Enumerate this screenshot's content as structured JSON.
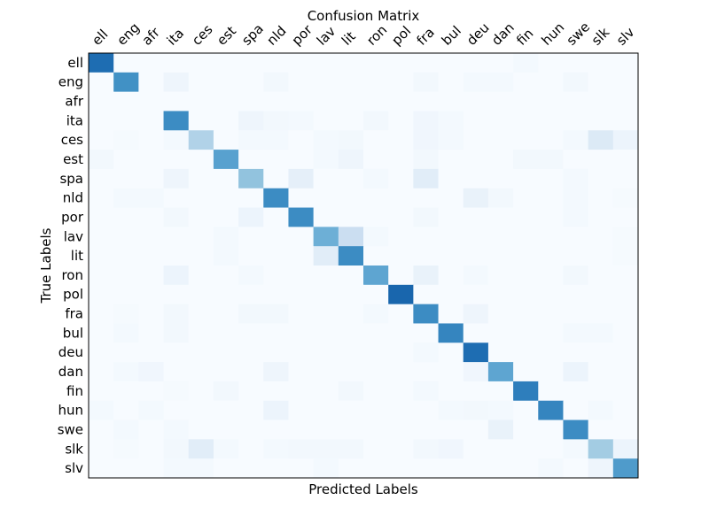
{
  "chart_data": {
    "type": "heatmap",
    "title": "Confusion Matrix",
    "xlabel": "Predicted Labels",
    "ylabel": "True Labels",
    "x_categories": [
      "ell",
      "eng",
      "afr",
      "ita",
      "ces",
      "est",
      "spa",
      "nld",
      "por",
      "lav",
      "lit",
      "ron",
      "pol",
      "fra",
      "bul",
      "deu",
      "dan",
      "fin",
      "hun",
      "swe",
      "slk",
      "slv"
    ],
    "y_categories": [
      "ell",
      "eng",
      "afr",
      "ita",
      "ces",
      "est",
      "spa",
      "nld",
      "por",
      "lav",
      "lit",
      "ron",
      "pol",
      "fra",
      "bul",
      "deu",
      "dan",
      "fin",
      "hun",
      "swe",
      "slk",
      "slv"
    ],
    "colormap": "Blues",
    "value_range": [
      0,
      1
    ],
    "x_ticks_position": "top",
    "grid": false,
    "values": [
      [
        0.85,
        0,
        0,
        0,
        0,
        0,
        0,
        0,
        0,
        0,
        0,
        0,
        0,
        0,
        0,
        0,
        0,
        0.02,
        0,
        0,
        0,
        0
      ],
      [
        0,
        0.7,
        0,
        0.05,
        0,
        0,
        0,
        0.03,
        0,
        0,
        0,
        0,
        0,
        0.03,
        0,
        0.02,
        0.02,
        0,
        0,
        0.03,
        0,
        0
      ],
      [
        0,
        0,
        0,
        0,
        0,
        0,
        0,
        0,
        0,
        0,
        0,
        0,
        0,
        0,
        0,
        0,
        0,
        0,
        0,
        0,
        0,
        0
      ],
      [
        0,
        0,
        0,
        0.72,
        0,
        0,
        0.05,
        0.03,
        0.02,
        0,
        0,
        0.03,
        0,
        0.04,
        0.02,
        0,
        0,
        0,
        0,
        0,
        0,
        0
      ],
      [
        0,
        0.01,
        0,
        0.02,
        0.35,
        0,
        0.02,
        0.02,
        0,
        0.02,
        0.03,
        0,
        0,
        0.04,
        0.02,
        0,
        0,
        0,
        0,
        0.02,
        0.15,
        0.06
      ],
      [
        0.03,
        0,
        0,
        0,
        0,
        0.62,
        0,
        0,
        0,
        0.02,
        0.05,
        0,
        0,
        0.03,
        0,
        0,
        0,
        0.03,
        0.03,
        0,
        0,
        0
      ],
      [
        0,
        0,
        0,
        0.05,
        0,
        0,
        0.45,
        0,
        0.1,
        0,
        0,
        0.02,
        0,
        0.12,
        0,
        0,
        0,
        0,
        0,
        0.02,
        0,
        0
      ],
      [
        0,
        0.02,
        0.02,
        0,
        0,
        0,
        0,
        0.72,
        0,
        0,
        0,
        0,
        0,
        0,
        0,
        0.08,
        0.03,
        0,
        0,
        0.02,
        0,
        0.01
      ],
      [
        0,
        0,
        0,
        0.03,
        0,
        0,
        0.06,
        0,
        0.72,
        0,
        0,
        0,
        0,
        0.03,
        0,
        0,
        0,
        0,
        0,
        0.02,
        0,
        0
      ],
      [
        0,
        0,
        0,
        0,
        0,
        0.02,
        0,
        0,
        0,
        0.55,
        0.25,
        0.02,
        0,
        0,
        0,
        0,
        0,
        0,
        0,
        0,
        0,
        0.01
      ],
      [
        0,
        0,
        0,
        0,
        0,
        0.02,
        0,
        0,
        0,
        0.12,
        0.72,
        0,
        0,
        0,
        0,
        0,
        0,
        0,
        0,
        0,
        0,
        0.01
      ],
      [
        0,
        0,
        0,
        0.06,
        0,
        0,
        0.02,
        0,
        0,
        0,
        0,
        0.6,
        0,
        0.08,
        0,
        0.02,
        0,
        0,
        0,
        0.03,
        0,
        0
      ],
      [
        0,
        0,
        0,
        0,
        0,
        0,
        0,
        0,
        0,
        0,
        0,
        0,
        0.88,
        0,
        0,
        0,
        0,
        0,
        0,
        0,
        0,
        0
      ],
      [
        0,
        0.01,
        0,
        0.03,
        0,
        0,
        0.03,
        0.03,
        0,
        0,
        0,
        0.02,
        0,
        0.72,
        0,
        0.05,
        0,
        0,
        0,
        0,
        0,
        0
      ],
      [
        0,
        0.02,
        0,
        0.03,
        0,
        0,
        0,
        0,
        0,
        0,
        0,
        0,
        0,
        0,
        0.75,
        0,
        0,
        0,
        0,
        0.02,
        0.02,
        0
      ],
      [
        0,
        0,
        0,
        0,
        0,
        0,
        0,
        0,
        0,
        0,
        0,
        0,
        0,
        0.02,
        0,
        0.85,
        0,
        0,
        0,
        0,
        0,
        0
      ],
      [
        0,
        0.02,
        0.04,
        0,
        0,
        0,
        0,
        0.05,
        0,
        0,
        0,
        0,
        0,
        0,
        0,
        0.04,
        0.6,
        0,
        0,
        0.06,
        0,
        0
      ],
      [
        0,
        0,
        0,
        0.01,
        0,
        0.03,
        0,
        0,
        0,
        0,
        0.03,
        0,
        0,
        0.02,
        0,
        0,
        0,
        0.78,
        0,
        0,
        0,
        0
      ],
      [
        0.02,
        0,
        0.02,
        0,
        0,
        0,
        0,
        0.06,
        0,
        0,
        0,
        0,
        0,
        0,
        0.02,
        0.03,
        0.02,
        0,
        0.75,
        0,
        0.02,
        0
      ],
      [
        0,
        0.02,
        0,
        0.02,
        0,
        0,
        0,
        0,
        0,
        0,
        0,
        0,
        0,
        0,
        0,
        0,
        0.08,
        0,
        0,
        0.72,
        0,
        0
      ],
      [
        0,
        0.01,
        0,
        0.03,
        0.12,
        0.02,
        0,
        0.02,
        0.03,
        0.03,
        0.03,
        0,
        0,
        0.03,
        0.04,
        0,
        0,
        0,
        0,
        0.02,
        0.4,
        0.06
      ],
      [
        0,
        0,
        0,
        0.02,
        0.02,
        0,
        0,
        0,
        0,
        0.02,
        0,
        0,
        0,
        0,
        0,
        0,
        0,
        0,
        0.02,
        0,
        0.05,
        0.65
      ]
    ]
  }
}
